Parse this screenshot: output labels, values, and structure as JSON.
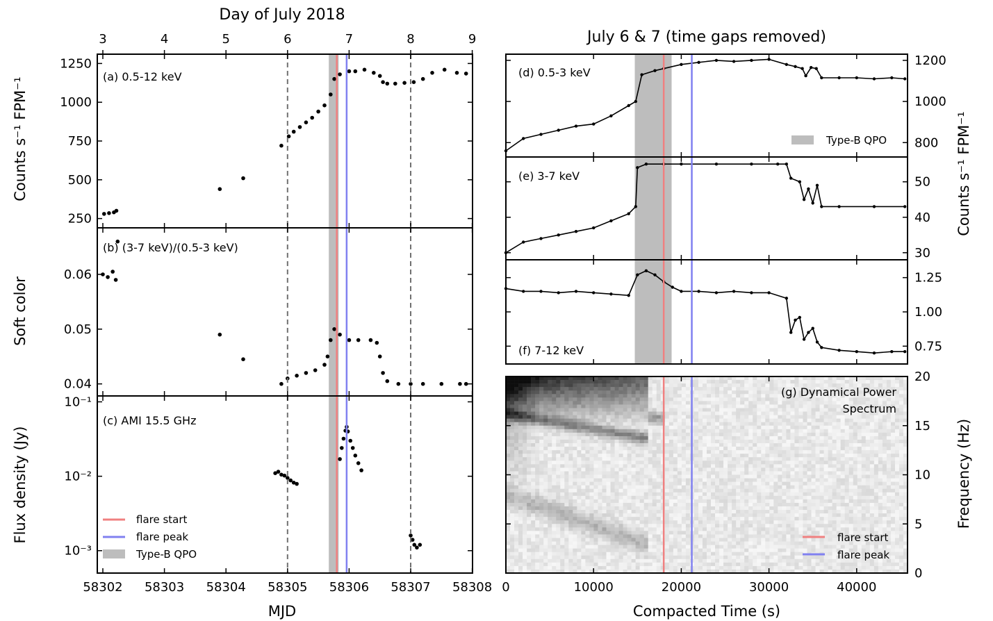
{
  "colors": {
    "flare_start": "#f08080",
    "flare_peak": "#8080f0",
    "qpo_band": "#bdbdbd",
    "dashed": "#707070",
    "data": "#000000"
  },
  "left": {
    "top_axis_title": "Day of July 2018",
    "top_ticks": [
      "3",
      "4",
      "5",
      "6",
      "7",
      "8",
      "9"
    ],
    "xlabel": "MJD",
    "x_ticks": [
      "58302",
      "58303",
      "58304",
      "58305",
      "58306",
      "58307",
      "58308"
    ]
  },
  "right": {
    "title": "July 6 & 7 (time gaps removed)",
    "xlabel": "Compacted Time (s)",
    "x_ticks": [
      "0",
      "10000",
      "20000",
      "30000",
      "40000"
    ]
  },
  "legend_left": [
    {
      "label": "flare start",
      "key": "flare_start"
    },
    {
      "label": "flare peak",
      "key": "flare_peak"
    },
    {
      "label": "Type-B QPO",
      "key": "qpo_band"
    }
  ],
  "legend_d": {
    "label": "Type-B QPO"
  },
  "legend_g": [
    {
      "label": "flare start"
    },
    {
      "label": "flare peak"
    }
  ],
  "chart_data": [
    {
      "id": "a",
      "type": "scatter",
      "annotation": "(a) 0.5-12 keV",
      "ylabel": "Counts s⁻¹ FPM⁻¹",
      "y_ticks": [
        "250",
        "500",
        "750",
        "1000",
        "1250"
      ],
      "xlim": [
        58301.75,
        58308.1
      ],
      "ylim": [
        190,
        1310
      ],
      "x": [
        58302.02,
        58302.1,
        58302.18,
        58302.22,
        58303.9,
        58304.28,
        58304.9,
        58305.02,
        58305.1,
        58305.2,
        58305.3,
        58305.4,
        58305.5,
        58305.6,
        58305.7,
        58305.76,
        58305.85,
        58306.0,
        58306.1,
        58306.25,
        58306.4,
        58306.5,
        58306.55,
        58306.62,
        58306.75,
        58306.9,
        58307.05,
        58307.2,
        58307.35,
        58307.55,
        58307.75,
        58307.9
      ],
      "y": [
        280,
        285,
        290,
        300,
        440,
        510,
        720,
        780,
        810,
        840,
        870,
        900,
        940,
        980,
        1050,
        1150,
        1180,
        1200,
        1200,
        1210,
        1190,
        1170,
        1130,
        1120,
        1120,
        1125,
        1130,
        1150,
        1190,
        1210,
        1190,
        1185
      ],
      "vlines_dashed": [
        58305.0,
        58307.0
      ],
      "vline_start": 58305.8,
      "vline_peak": 58305.96,
      "qpo_band": [
        58305.67,
        58305.83
      ]
    },
    {
      "id": "b",
      "type": "scatter",
      "annotation": "(b) (3-7 keV)/(0.5-3 keV)",
      "ylabel": "Soft color",
      "y_ticks": [
        "0.04",
        "0.05",
        "0.06"
      ],
      "xlim": [
        58301.75,
        58308.1
      ],
      "ylim": [
        0.0378,
        0.0685
      ],
      "x": [
        58302.0,
        58302.08,
        58302.16,
        58302.21,
        58302.24,
        58303.9,
        58304.28,
        58304.9,
        58305.0,
        58305.15,
        58305.3,
        58305.45,
        58305.6,
        58305.65,
        58305.7,
        58305.76,
        58305.85,
        58306.0,
        58306.15,
        58306.35,
        58306.45,
        58306.5,
        58306.55,
        58306.62,
        58306.8,
        58307.0,
        58307.2,
        58307.5,
        58307.8,
        58307.9
      ],
      "y": [
        0.06,
        0.0595,
        0.0605,
        0.059,
        0.066,
        0.049,
        0.0445,
        0.04,
        0.041,
        0.0415,
        0.042,
        0.0425,
        0.0435,
        0.045,
        0.048,
        0.05,
        0.049,
        0.048,
        0.048,
        0.048,
        0.0475,
        0.045,
        0.042,
        0.0405,
        0.04,
        0.04,
        0.04,
        0.04,
        0.04,
        0.04
      ],
      "vlines_dashed": [
        58305.0,
        58307.0
      ],
      "vline_start": 58305.8,
      "vline_peak": 58305.96,
      "qpo_band": [
        58305.67,
        58305.83
      ]
    },
    {
      "id": "c",
      "type": "scatter",
      "annotation": "(c) AMI 15.5 GHz",
      "ylabel": "Flux density (Jy)",
      "yscale": "log",
      "y_ticks": [
        "10⁻³",
        "10⁻²",
        "10⁻¹"
      ],
      "xlim": [
        58301.75,
        58308.1
      ],
      "ylim": [
        0.0005,
        0.12
      ],
      "x": [
        58304.8,
        58304.85,
        58304.9,
        58304.95,
        58305.0,
        58305.05,
        58305.1,
        58305.15,
        58305.85,
        58305.88,
        58305.91,
        58305.94,
        58305.96,
        58305.98,
        58306.02,
        58306.06,
        58306.1,
        58306.15,
        58306.2,
        58307.0,
        58307.03,
        58307.06,
        58307.1,
        58307.15
      ],
      "y": [
        0.011,
        0.0115,
        0.0105,
        0.0102,
        0.0095,
        0.0088,
        0.0082,
        0.0079,
        0.017,
        0.024,
        0.032,
        0.041,
        0.046,
        0.04,
        0.03,
        0.024,
        0.019,
        0.015,
        0.012,
        0.0016,
        0.0014,
        0.0012,
        0.0011,
        0.0012
      ],
      "vlines_dashed": [
        58305.0,
        58307.0
      ],
      "vline_start": 58305.8,
      "vline_peak": 58305.96,
      "qpo_band": [
        58305.67,
        58305.83
      ]
    },
    {
      "id": "d",
      "type": "line",
      "annotation": "(d) 0.5-3 keV",
      "y_ticks": [
        "800",
        "1000",
        "1200"
      ],
      "xlim": [
        0,
        45800
      ],
      "ylim": [
        730,
        1230
      ],
      "x": [
        0,
        2000,
        4000,
        6000,
        8000,
        10000,
        12000,
        14000,
        14800,
        15500,
        17000,
        18000,
        20000,
        22000,
        24000,
        26000,
        28000,
        30000,
        32000,
        33000,
        33800,
        34200,
        34800,
        35400,
        36000,
        38000,
        40000,
        42000,
        44000,
        45500
      ],
      "y": [
        760,
        820,
        840,
        860,
        880,
        890,
        930,
        980,
        1000,
        1130,
        1150,
        1160,
        1180,
        1190,
        1200,
        1195,
        1200,
        1205,
        1180,
        1170,
        1160,
        1125,
        1165,
        1160,
        1115,
        1115,
        1115,
        1110,
        1115,
        1110
      ],
      "vline_start": 18000,
      "vline_peak": 21200,
      "qpo_band": [
        14700,
        18900
      ]
    },
    {
      "id": "e",
      "type": "line",
      "annotation": "(e) 3-7 keV",
      "ylabel": "Counts s⁻¹ FPM⁻¹",
      "y_ticks": [
        "30",
        "40",
        "50"
      ],
      "xlim": [
        0,
        45800
      ],
      "ylim": [
        28,
        57
      ],
      "x": [
        0,
        2000,
        4000,
        6000,
        8000,
        10000,
        12000,
        14000,
        14800,
        15000,
        16000,
        18000,
        20000,
        24000,
        28000,
        31000,
        32000,
        32500,
        33500,
        34000,
        34500,
        35000,
        35500,
        36000,
        38000,
        42000,
        45500
      ],
      "y": [
        30,
        33,
        34,
        35,
        36,
        37,
        39,
        41,
        43,
        54,
        55,
        55,
        55,
        55,
        55,
        55,
        55,
        51,
        50,
        45,
        48,
        44,
        49,
        43,
        43,
        43,
        43
      ],
      "vline_start": 18000,
      "vline_peak": 21200,
      "qpo_band": [
        14700,
        18900
      ]
    },
    {
      "id": "f",
      "type": "line",
      "annotation": "(f) 7-12 keV",
      "y_ticks": [
        "0.75",
        "1.00",
        "1.25"
      ],
      "xlim": [
        0,
        45800
      ],
      "ylim": [
        0.62,
        1.38
      ],
      "x": [
        0,
        2000,
        4000,
        6000,
        8000,
        10000,
        12000,
        14000,
        15000,
        16000,
        17000,
        18000,
        19000,
        20000,
        22000,
        24000,
        26000,
        28000,
        30000,
        32000,
        32500,
        33000,
        33500,
        34000,
        34500,
        35000,
        35500,
        36000,
        38000,
        40000,
        42000,
        44000,
        45500
      ],
      "y": [
        1.17,
        1.15,
        1.15,
        1.14,
        1.15,
        1.14,
        1.13,
        1.12,
        1.27,
        1.3,
        1.27,
        1.22,
        1.18,
        1.15,
        1.15,
        1.14,
        1.15,
        1.14,
        1.14,
        1.1,
        0.85,
        0.94,
        0.96,
        0.8,
        0.85,
        0.88,
        0.78,
        0.74,
        0.72,
        0.71,
        0.7,
        0.71,
        0.71
      ],
      "vline_start": 18000,
      "vline_peak": 21200,
      "qpo_band": [
        14700,
        18900
      ]
    },
    {
      "id": "g",
      "type": "heatmap",
      "annotation": [
        "(g) Dynamical Power",
        "Spectrum"
      ],
      "ylabel": "Frequency (Hz)",
      "y_ticks": [
        "0",
        "5",
        "10",
        "15",
        "20"
      ],
      "xlim": [
        0,
        45800
      ],
      "ylim": [
        0,
        20
      ],
      "vline_start": 18000,
      "vline_peak": 21200
    }
  ]
}
